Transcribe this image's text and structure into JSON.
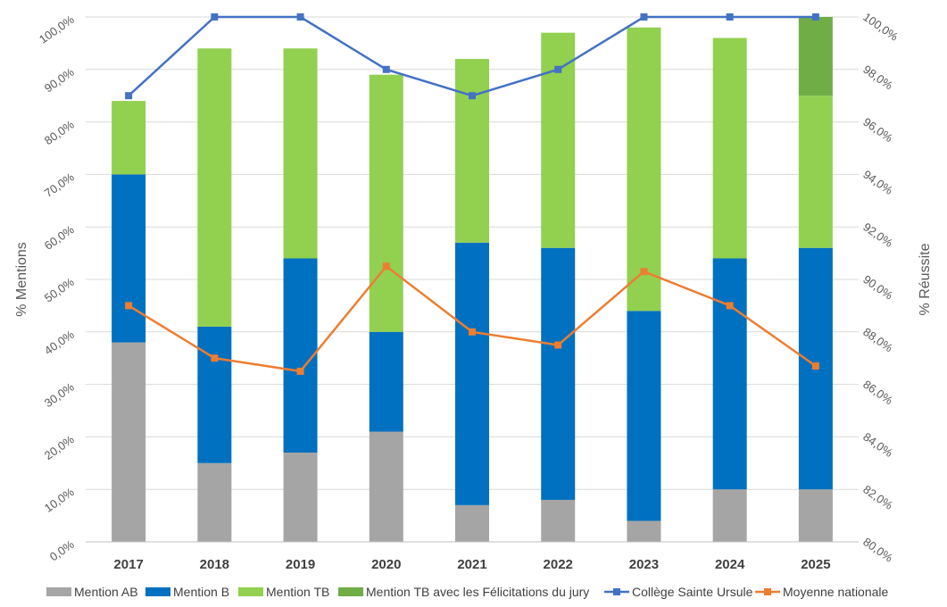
{
  "chart_data": {
    "type": "bar",
    "stacked": true,
    "categories": [
      "2017",
      "2018",
      "2019",
      "2020",
      "2021",
      "2022",
      "2023",
      "2024",
      "2025"
    ],
    "ylabel": "% Mentions",
    "ylabel_right": "% Réussite",
    "ylim": [
      0,
      100
    ],
    "ylim_right": [
      80,
      100
    ],
    "y_ticks": [
      "0,0%",
      "10,0%",
      "20,0%",
      "30,0%",
      "40,0%",
      "50,0%",
      "60,0%",
      "70,0%",
      "80,0%",
      "90,0%",
      "100,0%"
    ],
    "y_right_ticks": [
      "80,0%",
      "82,0%",
      "84,0%",
      "86,0%",
      "88,0%",
      "90,0%",
      "92,0%",
      "94,0%",
      "96,0%",
      "98,0%",
      "100,0%"
    ],
    "grid": true,
    "legend_position": "bottom",
    "series": [
      {
        "name": "Mention AB",
        "kind": "bar",
        "axis": "left",
        "color": "#a5a5a5",
        "values": [
          38,
          15,
          17,
          21,
          7,
          8,
          4,
          10,
          10
        ]
      },
      {
        "name": "Mention B",
        "kind": "bar",
        "axis": "left",
        "color": "#0070c0",
        "values": [
          32,
          26,
          37,
          19,
          50,
          48,
          40,
          44,
          46
        ]
      },
      {
        "name": "Mention TB",
        "kind": "bar",
        "axis": "left",
        "color": "#92d050",
        "values": [
          14,
          53,
          40,
          49,
          35,
          41,
          54,
          42,
          29
        ]
      },
      {
        "name": "Mention TB avec les Félicitations du jury",
        "kind": "bar",
        "axis": "left",
        "color": "#70ad47",
        "values": [
          0,
          0,
          0,
          0,
          0,
          0,
          0,
          0,
          15
        ]
      },
      {
        "name": "Collège Sainte Ursule",
        "kind": "line",
        "axis": "right",
        "color": "#4472c4",
        "values": [
          97,
          100,
          100,
          98,
          97,
          98,
          100,
          100,
          100
        ]
      },
      {
        "name": "Moyenne nationale",
        "kind": "line",
        "axis": "right",
        "color": "#ed7d31",
        "values": [
          89,
          87,
          86.5,
          90.5,
          88,
          87.5,
          90.3,
          89,
          86.7
        ]
      }
    ]
  }
}
